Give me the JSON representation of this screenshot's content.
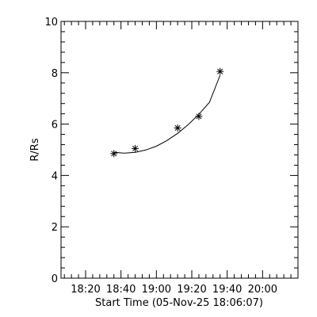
{
  "chart_data": {
    "type": "scatter",
    "title": "",
    "xlabel": "Start Time (05-Nov-25 18:06:07)",
    "ylabel": "R/Rs",
    "x_tick_labels": [
      "18:20",
      "18:40",
      "19:00",
      "19:20",
      "19:40",
      "20:00"
    ],
    "x_tick_values": [
      "18:20",
      "18:40",
      "19:00",
      "19:20",
      "19:40",
      "20:00"
    ],
    "xlim": [
      "18:06:07",
      "20:20"
    ],
    "x_minor_ticks_per_major": 4,
    "y_tick_labels": [
      "0",
      "2",
      "4",
      "6",
      "8",
      "10"
    ],
    "ylim": [
      0,
      10
    ],
    "y_minor_ticks_per_major": 4,
    "grid": false,
    "marker": "asterisk",
    "points": [
      {
        "x": "18:36",
        "y": 4.85
      },
      {
        "x": "18:48",
        "y": 5.05
      },
      {
        "x": "19:12",
        "y": 5.85
      },
      {
        "x": "19:24",
        "y": 6.3
      },
      {
        "x": "19:36",
        "y": 8.05
      }
    ],
    "fit": {
      "type": "quadratic",
      "x": [
        "18:36",
        "18:42",
        "18:48",
        "18:54",
        "19:00",
        "19:06",
        "19:12",
        "19:18",
        "19:24",
        "19:30",
        "19:36"
      ],
      "y": [
        4.9,
        4.87,
        4.9,
        4.99,
        5.14,
        5.36,
        5.64,
        5.98,
        6.38,
        6.85,
        7.9
      ]
    }
  }
}
